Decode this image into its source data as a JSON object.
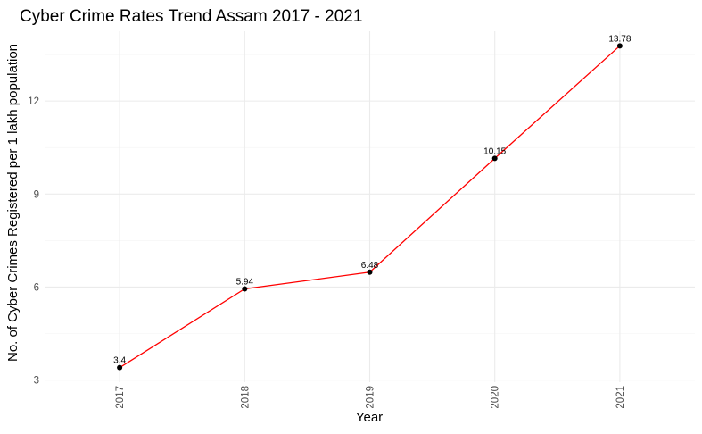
{
  "chart_data": {
    "type": "line",
    "title": "Cyber Crime Rates Trend Assam 2017 - 2021",
    "xlabel": "Year",
    "ylabel": "No. of Cyber Crimes Registered per 1 lakh population",
    "categories": [
      "2017",
      "2018",
      "2019",
      "2020",
      "2021"
    ],
    "values": [
      3.4,
      5.94,
      6.48,
      10.15,
      13.78
    ],
    "data_labels": [
      "3.4",
      "5.94",
      "6.48",
      "10.15",
      "13.78"
    ],
    "y_ticks": [
      3,
      6,
      9,
      12
    ],
    "y_tick_labels": [
      "3",
      "6",
      "9",
      "12"
    ],
    "ylim": [
      2.93,
      14.25
    ],
    "grid": true,
    "line_color": "#ff0000",
    "point_color": "#000000"
  }
}
